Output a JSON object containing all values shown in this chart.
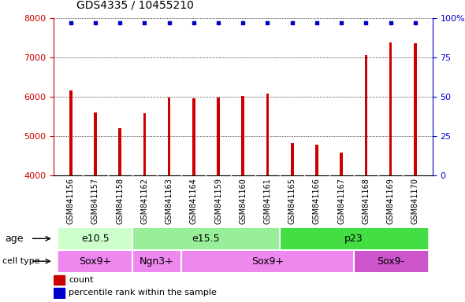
{
  "title": "GDS4335 / 10455210",
  "samples": [
    "GSM841156",
    "GSM841157",
    "GSM841158",
    "GSM841162",
    "GSM841163",
    "GSM841164",
    "GSM841159",
    "GSM841160",
    "GSM841161",
    "GSM841165",
    "GSM841166",
    "GSM841167",
    "GSM841168",
    "GSM841169",
    "GSM841170"
  ],
  "counts": [
    6150,
    5600,
    5200,
    5580,
    5970,
    5950,
    5980,
    6020,
    6080,
    4810,
    4770,
    4580,
    7050,
    7380,
    7350
  ],
  "percentile_ranks": [
    100,
    100,
    100,
    100,
    100,
    100,
    100,
    100,
    100,
    100,
    100,
    100,
    100,
    100,
    100
  ],
  "bar_color": "#cc0000",
  "dot_color": "#0000cc",
  "ylim_left": [
    4000,
    8000
  ],
  "ylim_right": [
    0,
    100
  ],
  "yticks_left": [
    4000,
    5000,
    6000,
    7000,
    8000
  ],
  "yticks_right": [
    0,
    25,
    50,
    75,
    100
  ],
  "ytick_labels_right": [
    "0",
    "25",
    "50",
    "75",
    "100%"
  ],
  "grid_values": [
    5000,
    6000,
    7000
  ],
  "age_groups": [
    {
      "label": "e10.5",
      "start": 0,
      "end": 3,
      "color": "#ccffcc"
    },
    {
      "label": "e15.5",
      "start": 3,
      "end": 9,
      "color": "#99ee99"
    },
    {
      "label": "p23",
      "start": 9,
      "end": 15,
      "color": "#44dd44"
    }
  ],
  "cell_type_groups": [
    {
      "label": "Sox9+",
      "start": 0,
      "end": 3,
      "color": "#ee88ee"
    },
    {
      "label": "Ngn3+",
      "start": 3,
      "end": 5,
      "color": "#ee88ee"
    },
    {
      "label": "Sox9+",
      "start": 5,
      "end": 12,
      "color": "#ee88ee"
    },
    {
      "label": "Sox9-",
      "start": 12,
      "end": 15,
      "color": "#cc55cc"
    }
  ],
  "legend_count_color": "#cc0000",
  "legend_dot_color": "#0000cc",
  "right_axis_color": "#0000cc",
  "left_axis_color": "#cc0000",
  "title_fontsize": 10,
  "tick_fontsize": 8,
  "label_fontsize": 9,
  "sample_label_fontsize": 7
}
